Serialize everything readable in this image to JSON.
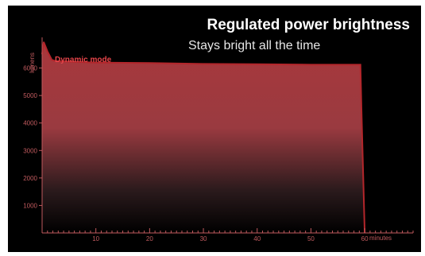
{
  "chart_data": {
    "type": "area",
    "title": "Regulated power brightness",
    "subtitle": "Stays bright all the time",
    "ylabel": "lumens",
    "xlabel": "minutes",
    "ylim": [
      0,
      7000
    ],
    "xlim": [
      0,
      69
    ],
    "yticks": [
      1000,
      2000,
      3000,
      4000,
      5000,
      6000
    ],
    "xticks": [
      10,
      20,
      30,
      40,
      50,
      60
    ],
    "grid": false,
    "series": [
      {
        "name": "Dynamic mode",
        "x": [
          0,
          0.3,
          1.0,
          1.8,
          2.5,
          10,
          20,
          30,
          40,
          50,
          59.2,
          59.4,
          60.0
        ],
        "values": [
          6500,
          6950,
          6600,
          6300,
          6250,
          6200,
          6180,
          6150,
          6140,
          6120,
          6120,
          4500,
          0
        ]
      }
    ],
    "colors": {
      "area_top": "#a8383c",
      "area_bottom": "#000000",
      "line": "#b3262b",
      "axis": "#c05a5e",
      "annotation": "#e8454a"
    }
  }
}
